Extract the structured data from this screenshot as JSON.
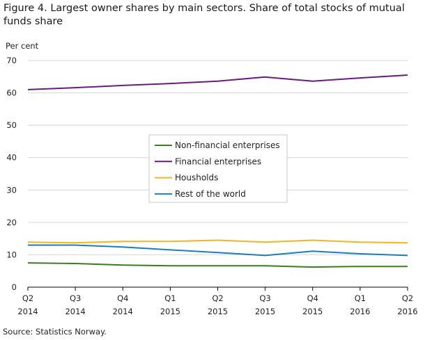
{
  "title": "Figure 4. Largest owner shares by main sectors. Share of total stocks of mutual funds share",
  "source": "Source: Statistics Norway.",
  "chart_data": {
    "type": "line",
    "ylabel": "Per cent",
    "ylim": [
      0,
      70
    ],
    "yticks": [
      0,
      10,
      20,
      30,
      40,
      50,
      60,
      70
    ],
    "categories": [
      [
        "Q2",
        "2014"
      ],
      [
        "Q3",
        "2014"
      ],
      [
        "Q4",
        "2014"
      ],
      [
        "Q1",
        "2015"
      ],
      [
        "Q2",
        "2015"
      ],
      [
        "Q3",
        "2015"
      ],
      [
        "Q4",
        "2015"
      ],
      [
        "Q1",
        "2016"
      ],
      [
        "Q2",
        "2016"
      ]
    ],
    "grid": "horizontal",
    "legend_position": "center",
    "series": [
      {
        "name": "Non-financial enterprises",
        "color": "#3a7d1e",
        "values": [
          7.5,
          7.3,
          6.8,
          6.6,
          6.6,
          6.6,
          6.2,
          6.4,
          6.4
        ]
      },
      {
        "name": "Financial enterprises",
        "color": "#6a1a7f",
        "values": [
          61.0,
          61.6,
          62.3,
          62.9,
          63.6,
          64.9,
          63.6,
          64.6,
          65.5
        ]
      },
      {
        "name": "Housholds",
        "color": "#f2b61c",
        "values": [
          13.9,
          13.7,
          14.1,
          14.1,
          14.5,
          13.9,
          14.5,
          13.9,
          13.7
        ]
      },
      {
        "name": "Rest of the world",
        "color": "#1a7cc1",
        "values": [
          13.0,
          13.0,
          12.4,
          11.5,
          10.7,
          9.8,
          11.1,
          10.3,
          9.8
        ]
      }
    ]
  }
}
